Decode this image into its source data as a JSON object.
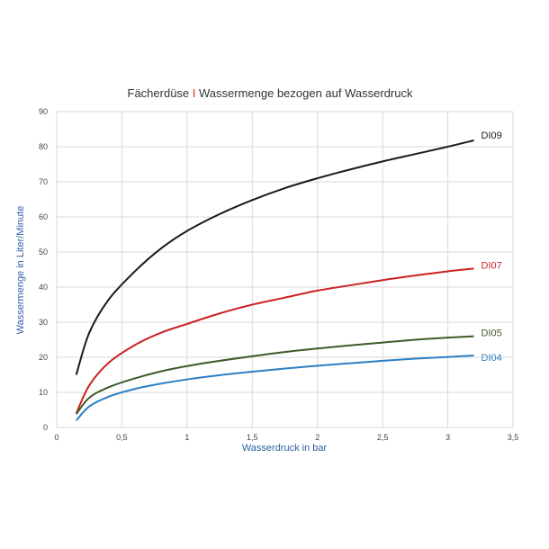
{
  "chart_data": {
    "type": "line",
    "title_parts": [
      {
        "text": "Fächerdüse ",
        "color": "#333333"
      },
      {
        "text": "I",
        "color": "#e2231a"
      },
      {
        "text": " Wassermenge bezogen auf Wasserdruck",
        "color": "#333333"
      }
    ],
    "xlabel": "Wasserdruck in bar",
    "ylabel": "Wassermenge in Liter/Minute",
    "axis_title_color": "#2e5fa8",
    "xlim": [
      0,
      3.5
    ],
    "ylim": [
      0,
      90
    ],
    "x_ticks": [
      {
        "value": 0,
        "label": "0"
      },
      {
        "value": 0.5,
        "label": "0,5"
      },
      {
        "value": 1,
        "label": "1"
      },
      {
        "value": 1.5,
        "label": "1,5"
      },
      {
        "value": 2,
        "label": "2"
      },
      {
        "value": 2.5,
        "label": "2,5"
      },
      {
        "value": 3,
        "label": "3"
      },
      {
        "value": 3.5,
        "label": "3,5"
      }
    ],
    "y_ticks": [
      {
        "value": 0,
        "label": "0"
      },
      {
        "value": 10,
        "label": "10"
      },
      {
        "value": 20,
        "label": "20"
      },
      {
        "value": 30,
        "label": "30"
      },
      {
        "value": 40,
        "label": "40"
      },
      {
        "value": 50,
        "label": "50"
      },
      {
        "value": 60,
        "label": "60"
      },
      {
        "value": 70,
        "label": "70"
      },
      {
        "value": 80,
        "label": "80"
      },
      {
        "value": 90,
        "label": "90"
      }
    ],
    "grid": true,
    "legend": "labels at line ends",
    "x": [
      0.15,
      0.25,
      0.4,
      0.6,
      0.8,
      1.0,
      1.25,
      1.5,
      1.75,
      2.0,
      2.25,
      2.5,
      2.75,
      3.0,
      3.2
    ],
    "series": [
      {
        "name": "DI09",
        "color": "#1a1a1a",
        "values": [
          15.0,
          27.0,
          36.5,
          44.5,
          51.0,
          56.0,
          60.8,
          64.8,
          68.2,
          71.0,
          73.5,
          75.8,
          77.9,
          80.0,
          81.8
        ]
      },
      {
        "name": "DI07",
        "color": "#cc2222",
        "values": [
          4.0,
          12.0,
          18.5,
          23.5,
          27.0,
          29.5,
          32.5,
          35.0,
          37.0,
          39.0,
          40.5,
          42.0,
          43.3,
          44.5,
          45.3
        ]
      },
      {
        "name": "DI05",
        "color": "#3d5a2a",
        "values": [
          3.8,
          8.5,
          11.5,
          14.0,
          16.0,
          17.5,
          19.0,
          20.3,
          21.5,
          22.5,
          23.4,
          24.2,
          25.0,
          25.6,
          26.0
        ]
      },
      {
        "name": "DI04",
        "color": "#2a7fc4",
        "values": [
          2.0,
          6.0,
          8.8,
          11.0,
          12.5,
          13.7,
          14.9,
          15.9,
          16.8,
          17.6,
          18.3,
          19.0,
          19.6,
          20.1,
          20.5
        ]
      }
    ]
  }
}
